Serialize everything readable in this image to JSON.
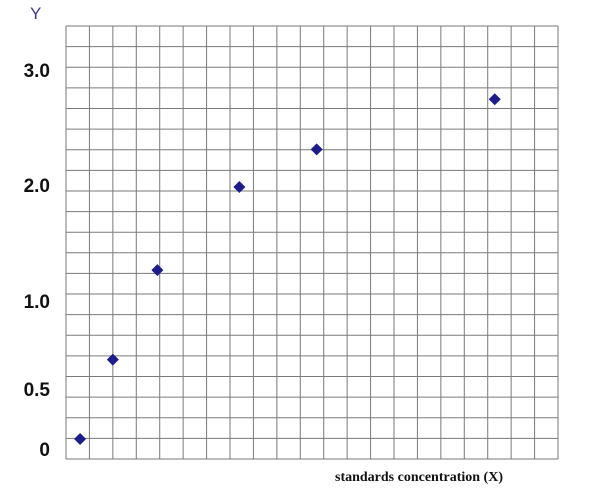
{
  "chart_data": {
    "type": "scatter",
    "title": "",
    "xlabel": "standards concentration (X)",
    "ylabel": "Y",
    "y_tick_labels": [
      "3.0",
      "2.0",
      "1.0",
      "0.5",
      "0"
    ],
    "y_tick_values": [
      3.0,
      2.0,
      1.0,
      0.5,
      0
    ],
    "grid": true,
    "grid_columns": 21,
    "grid_rows": 21,
    "marker": "diamond",
    "marker_color": "#1c1c8c",
    "points": [
      {
        "x": 0.6,
        "y": 0.1
      },
      {
        "x": 2.0,
        "y": 0.68
      },
      {
        "x": 3.9,
        "y": 1.29
      },
      {
        "x": 7.4,
        "y": 2.0
      },
      {
        "x": 10.7,
        "y": 2.33
      },
      {
        "x": 18.3,
        "y": 2.77
      }
    ]
  }
}
